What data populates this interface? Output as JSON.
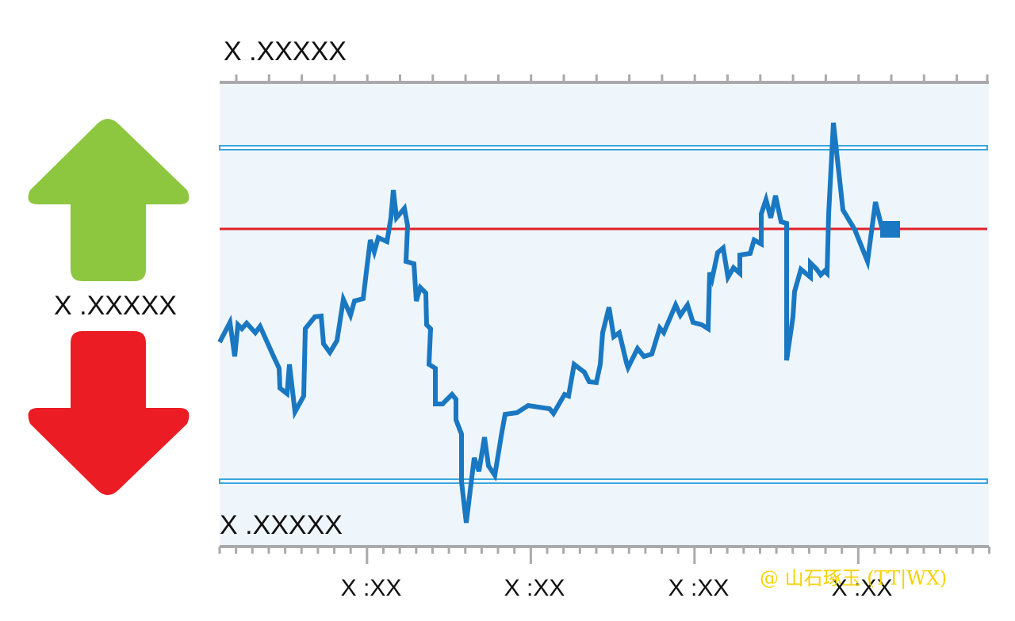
{
  "labels": {
    "top": "X .XXXXX",
    "middle": "X .XXXXX",
    "bottom": "X .XXXXX"
  },
  "x_labels": [
    "X :XX",
    "X :XX",
    "X :XX",
    "X :XX"
  ],
  "watermark": "@ 山石琢玉 (TT|WX)"
}
